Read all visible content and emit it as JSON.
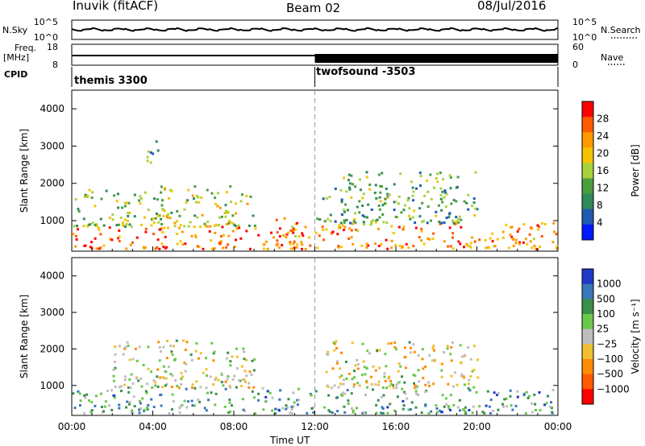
{
  "header": {
    "station": "Inuvik (fitACF)",
    "beam": "Beam 02",
    "date": "08/Jul/2016"
  },
  "top_panels": {
    "nsky_label": "N.Sky",
    "nsky_ticks": [
      "10^5",
      "10^0"
    ],
    "nsearch_label": "N.Search",
    "nsearch_ticks": [
      "10^5",
      "10^0"
    ],
    "freq_label": "Freq.",
    "freq_unit": "[MHz]",
    "freq_ticks": [
      "18",
      "8"
    ],
    "nave_label": "Nave",
    "nave_ticks": [
      "60",
      "0"
    ],
    "cpid_label": "CPID",
    "cpid_segments": [
      {
        "start_hour": 0,
        "name": "themis 3300"
      },
      {
        "start_hour": 12,
        "name": "twofsound -3503"
      }
    ]
  },
  "chart_data": [
    {
      "type": "heatmap",
      "name": "power",
      "ylabel": "Slant Range [km]",
      "colorbar_label": "Power [dB]",
      "colorbar_ticks": [
        "28",
        "24",
        "20",
        "16",
        "12",
        "8",
        "4"
      ],
      "colorbar_colors": [
        "#ff0000",
        "#ff5a00",
        "#ff9a00",
        "#f4c400",
        "#a8d23c",
        "#4a9e3e",
        "#2f8a5a",
        "#1f5ab0",
        "#0018ff"
      ],
      "ylim": [
        180,
        4500
      ],
      "yticks": [
        "4000",
        "3000",
        "2000",
        "1000"
      ],
      "blobs": [
        {
          "h0": 0.0,
          "h1": 12.0,
          "r0": 200,
          "r1": 800,
          "level": 0.85
        },
        {
          "h0": 0.0,
          "h1": 4.5,
          "r0": 800,
          "r1": 1800,
          "level": 0.45
        },
        {
          "h0": 4.0,
          "h1": 9.0,
          "r0": 800,
          "r1": 1900,
          "level": 0.5
        },
        {
          "h0": 10.0,
          "h1": 11.5,
          "r0": 300,
          "r1": 1100,
          "level": 0.75
        },
        {
          "h0": 3.6,
          "h1": 4.4,
          "r0": 2500,
          "r1": 3100,
          "level": 0.3
        },
        {
          "h0": 12.0,
          "h1": 24.0,
          "r0": 200,
          "r1": 900,
          "level": 0.8
        },
        {
          "h0": 12.0,
          "h1": 20.0,
          "r0": 900,
          "r1": 2300,
          "level": 0.35
        }
      ]
    },
    {
      "type": "heatmap",
      "name": "velocity",
      "ylabel": "Slant Range [km]",
      "colorbar_label": "Velocity [m s⁻¹]",
      "colorbar_ticks": [
        "1000",
        "500",
        "100",
        "25",
        "−25",
        "−100",
        "−500",
        "−1000"
      ],
      "colorbar_colors": [
        "#2038c8",
        "#3a78b8",
        "#3b8f4a",
        "#6ac84a",
        "#bebebe",
        "#f0c030",
        "#ff8c00",
        "#ff5a00",
        "#ff0000"
      ],
      "ylim": [
        180,
        4500
      ],
      "yticks": [
        "4000",
        "3000",
        "2000",
        "1000"
      ],
      "blobs": [
        {
          "h0": 0.0,
          "h1": 12.0,
          "r0": 200,
          "r1": 900,
          "level": 0.7
        },
        {
          "h0": 2.0,
          "h1": 9.0,
          "r0": 900,
          "r1": 2200,
          "level": 0.5
        },
        {
          "h0": 12.0,
          "h1": 24.0,
          "r0": 200,
          "r1": 900,
          "level": 0.72
        },
        {
          "h0": 12.5,
          "h1": 20.0,
          "r0": 900,
          "r1": 2200,
          "level": 0.45
        }
      ]
    }
  ],
  "xaxis": {
    "label": "Time UT",
    "ticks": [
      "00:00",
      "04:00",
      "08:00",
      "12:00",
      "16:00",
      "20:00",
      "00:00"
    ],
    "range_hours": [
      0,
      24
    ]
  }
}
